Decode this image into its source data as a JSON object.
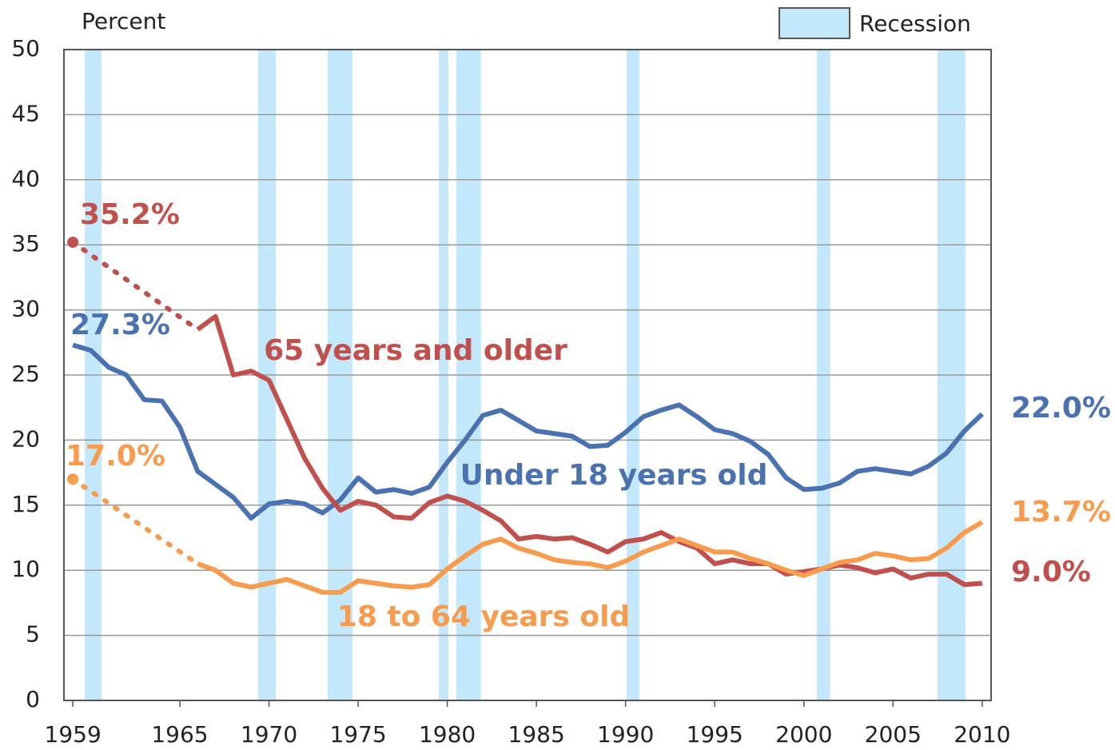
{
  "chart_data": {
    "type": "line",
    "ylabel": "Percent",
    "x": [
      1959,
      1960,
      1961,
      1962,
      1963,
      1964,
      1965,
      1966,
      1967,
      1968,
      1969,
      1970,
      1971,
      1972,
      1973,
      1974,
      1975,
      1976,
      1977,
      1978,
      1979,
      1980,
      1981,
      1982,
      1983,
      1984,
      1985,
      1986,
      1987,
      1988,
      1989,
      1990,
      1991,
      1992,
      1993,
      1994,
      1995,
      1996,
      1997,
      1998,
      1999,
      2000,
      2001,
      2002,
      2003,
      2004,
      2005,
      2006,
      2007,
      2008,
      2009,
      2010
    ],
    "xlim": [
      1958.5,
      2010.5
    ],
    "xticks": [
      1959,
      1965,
      1970,
      1975,
      1980,
      1985,
      1990,
      1995,
      2000,
      2005,
      2010
    ],
    "ylim": [
      0,
      50
    ],
    "yticks": [
      0,
      5,
      10,
      15,
      20,
      25,
      30,
      35,
      40,
      45,
      50
    ],
    "grid": true,
    "recessions": {
      "name": "Recession",
      "color": "#c3e8fb",
      "periods": [
        [
          1959.67,
          1960.61
        ],
        [
          1969.39,
          1970.38
        ],
        [
          1973.29,
          1974.68
        ],
        [
          1979.52,
          1980.06
        ],
        [
          1980.5,
          1981.89
        ],
        [
          1990.06,
          1990.77
        ],
        [
          2000.72,
          2001.48
        ],
        [
          2007.49,
          2009.06
        ]
      ]
    },
    "series": [
      {
        "name": "Under 18 years old",
        "color": "#4a71b0",
        "dotted_gaps": false,
        "values": [
          27.3,
          26.9,
          25.6,
          25.0,
          23.1,
          23.0,
          21.0,
          17.6,
          16.6,
          15.6,
          14.0,
          15.1,
          15.3,
          15.1,
          14.4,
          15.4,
          17.1,
          16.0,
          16.2,
          15.9,
          16.4,
          18.3,
          20.0,
          21.9,
          22.3,
          21.5,
          20.7,
          20.5,
          20.3,
          19.5,
          19.6,
          20.6,
          21.8,
          22.3,
          22.7,
          21.8,
          20.8,
          20.5,
          19.9,
          18.9,
          17.1,
          16.2,
          16.3,
          16.7,
          17.6,
          17.8,
          17.6,
          17.4,
          18.0,
          19.0,
          20.7,
          22.0
        ],
        "value_labels": [
          "27.3%",
          null,
          null,
          null,
          null,
          null,
          null,
          null,
          null,
          null,
          null,
          null,
          null,
          null,
          null,
          null,
          null,
          null,
          null,
          null,
          null,
          null,
          null,
          null,
          null,
          null,
          null,
          null,
          null,
          null,
          null,
          null,
          null,
          null,
          null,
          null,
          null,
          null,
          null,
          null,
          null,
          null,
          null,
          null,
          null,
          null,
          null,
          null,
          null,
          null,
          null,
          "22.0%"
        ]
      },
      {
        "name": "65 years and older",
        "color": "#c0504d",
        "dotted_gaps": true,
        "values": [
          35.2,
          null,
          null,
          null,
          null,
          null,
          null,
          28.5,
          29.5,
          25.0,
          25.3,
          24.6,
          21.6,
          18.6,
          16.3,
          14.6,
          15.3,
          15.0,
          14.1,
          14.0,
          15.2,
          15.7,
          15.3,
          14.6,
          13.8,
          12.4,
          12.6,
          12.4,
          12.5,
          12.0,
          11.4,
          12.2,
          12.4,
          12.9,
          12.2,
          11.7,
          10.5,
          10.8,
          10.5,
          10.5,
          9.7,
          9.9,
          10.1,
          10.4,
          10.2,
          9.8,
          10.1,
          9.4,
          9.7,
          9.7,
          8.9,
          9.0
        ],
        "value_labels": [
          "35.2%",
          null,
          null,
          null,
          null,
          null,
          null,
          null,
          null,
          null,
          null,
          null,
          null,
          null,
          null,
          null,
          null,
          null,
          null,
          null,
          null,
          null,
          null,
          null,
          null,
          null,
          null,
          null,
          null,
          null,
          null,
          null,
          null,
          null,
          null,
          null,
          null,
          null,
          null,
          null,
          null,
          null,
          null,
          null,
          null,
          null,
          null,
          null,
          null,
          null,
          null,
          "9.0%"
        ]
      },
      {
        "name": "18 to 64 years old",
        "color": "#f79b4f",
        "dotted_gaps": true,
        "values": [
          17.0,
          null,
          null,
          null,
          null,
          null,
          null,
          10.5,
          10.0,
          9.0,
          8.7,
          9.0,
          9.3,
          8.8,
          8.3,
          8.3,
          9.2,
          9.0,
          8.8,
          8.7,
          8.9,
          10.1,
          11.1,
          12.0,
          12.4,
          11.7,
          11.3,
          10.8,
          10.6,
          10.5,
          10.2,
          10.7,
          11.4,
          11.9,
          12.4,
          11.9,
          11.4,
          11.4,
          10.9,
          10.5,
          10.0,
          9.6,
          10.1,
          10.6,
          10.8,
          11.3,
          11.1,
          10.8,
          10.9,
          11.7,
          12.9,
          13.7
        ],
        "value_labels": [
          "17.0%",
          null,
          null,
          null,
          null,
          null,
          null,
          null,
          null,
          null,
          null,
          null,
          null,
          null,
          null,
          null,
          null,
          null,
          null,
          null,
          null,
          null,
          null,
          null,
          null,
          null,
          null,
          null,
          null,
          null,
          null,
          null,
          null,
          null,
          null,
          null,
          null,
          null,
          null,
          null,
          null,
          null,
          null,
          null,
          null,
          null,
          null,
          null,
          null,
          null,
          null,
          "13.7%"
        ]
      }
    ]
  }
}
